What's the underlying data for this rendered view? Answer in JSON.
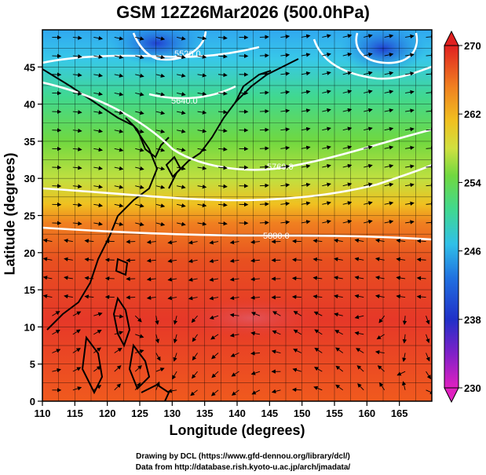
{
  "title": "GSM 12Z26Mar2026 (500.0hPa)",
  "x_axis": {
    "label": "Longitude (degrees)",
    "ticks": [
      "110",
      "115",
      "120",
      "125",
      "130",
      "135",
      "140",
      "145",
      "150",
      "155",
      "160",
      "165"
    ]
  },
  "y_axis": {
    "label": "Latitude  (degrees)",
    "ticks": [
      "0",
      "5",
      "10",
      "15",
      "20",
      "25",
      "30",
      "35",
      "40",
      "45"
    ]
  },
  "colorbar": {
    "ticks": [
      "230",
      "238",
      "246",
      "254",
      "262",
      "270"
    ],
    "colors": [
      "#e020c0",
      "#7020c8",
      "#2040d0",
      "#2090e8",
      "#30c8e8",
      "#40d890",
      "#60d040",
      "#b0e040",
      "#f0d020",
      "#f0a020",
      "#e86020",
      "#e02020"
    ]
  },
  "contour_labels": [
    "5880.0",
    "5760.0",
    "5640.0",
    "5520.0"
  ],
  "credits": {
    "line1": "Drawing by DCL (https://www.gfd-dennou.org/library/dcl/)",
    "line2": "Data from http://database.rish.kyoto-u.ac.jp/arch/jmadata/"
  },
  "map_data": {
    "lon_range": [
      110,
      170
    ],
    "lat_range": [
      0,
      50
    ],
    "temperature_range_K": [
      230,
      270
    ]
  }
}
